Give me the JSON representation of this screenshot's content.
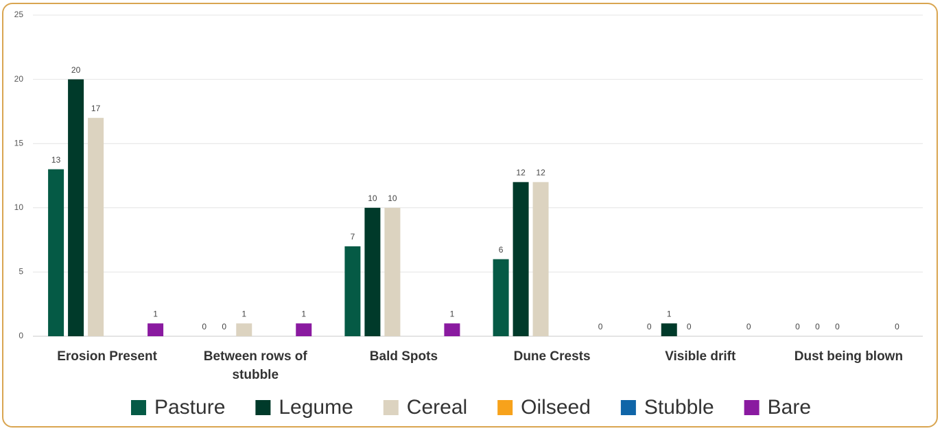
{
  "chart_data": {
    "type": "bar",
    "categories": [
      "Erosion Present",
      "Between rows of stubble",
      "Bald Spots",
      "Dune Crests",
      "Visible drift",
      "Dust being blown"
    ],
    "series": [
      {
        "name": "Pasture",
        "color": "#055a45",
        "values": [
          13,
          0,
          7,
          6,
          0,
          0
        ]
      },
      {
        "name": "Legume",
        "color": "#003a2a",
        "values": [
          20,
          0,
          10,
          12,
          1,
          0
        ]
      },
      {
        "name": "Cereal",
        "color": "#dcd3c0",
        "values": [
          17,
          1,
          10,
          12,
          0,
          0
        ]
      },
      {
        "name": "Oilseed",
        "color": "#f7a21b",
        "values": [
          null,
          null,
          null,
          null,
          null,
          null
        ]
      },
      {
        "name": "Stubble",
        "color": "#0f65a8",
        "values": [
          null,
          null,
          null,
          null,
          null,
          null
        ]
      },
      {
        "name": "Bare",
        "color": "#8a1aa0",
        "values": [
          1,
          1,
          1,
          0,
          0,
          0
        ]
      }
    ],
    "ylim": [
      0,
      25
    ],
    "yticks": [
      0,
      5,
      10,
      15,
      20,
      25
    ],
    "grid": true,
    "legend": "bottom"
  }
}
